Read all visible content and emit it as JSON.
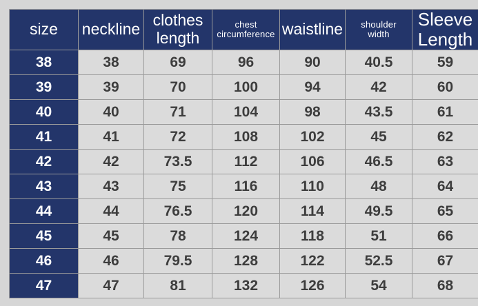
{
  "colors": {
    "page_bg": "#d6d6d6",
    "header_bg": "#23356a",
    "cell_bg": "#dbdbdb",
    "border": "#9a9a9a",
    "header_text": "#ffffff",
    "cell_text": "#3d3d3d"
  },
  "chart_data": {
    "type": "table",
    "columns": [
      {
        "key": "size",
        "label": "size"
      },
      {
        "key": "neckline",
        "label": "neckline"
      },
      {
        "key": "clothes_length",
        "label": "clothes\nlength"
      },
      {
        "key": "chest_circumference",
        "label": "chest\ncircumference"
      },
      {
        "key": "waistline",
        "label": "waistline"
      },
      {
        "key": "shoulder_width",
        "label": "shoulder\nwidth"
      },
      {
        "key": "sleeve_length",
        "label": "Sleeve\nLength"
      }
    ],
    "rows": [
      [
        "38",
        "38",
        "69",
        "96",
        "90",
        "40.5",
        "59"
      ],
      [
        "39",
        "39",
        "70",
        "100",
        "94",
        "42",
        "60"
      ],
      [
        "40",
        "40",
        "71",
        "104",
        "98",
        "43.5",
        "61"
      ],
      [
        "41",
        "41",
        "72",
        "108",
        "102",
        "45",
        "62"
      ],
      [
        "42",
        "42",
        "73.5",
        "112",
        "106",
        "46.5",
        "63"
      ],
      [
        "43",
        "43",
        "75",
        "116",
        "110",
        "48",
        "64"
      ],
      [
        "44",
        "44",
        "76.5",
        "120",
        "114",
        "49.5",
        "65"
      ],
      [
        "45",
        "45",
        "78",
        "124",
        "118",
        "51",
        "66"
      ],
      [
        "46",
        "46",
        "79.5",
        "128",
        "122",
        "52.5",
        "67"
      ],
      [
        "47",
        "47",
        "81",
        "132",
        "126",
        "54",
        "68"
      ]
    ]
  }
}
